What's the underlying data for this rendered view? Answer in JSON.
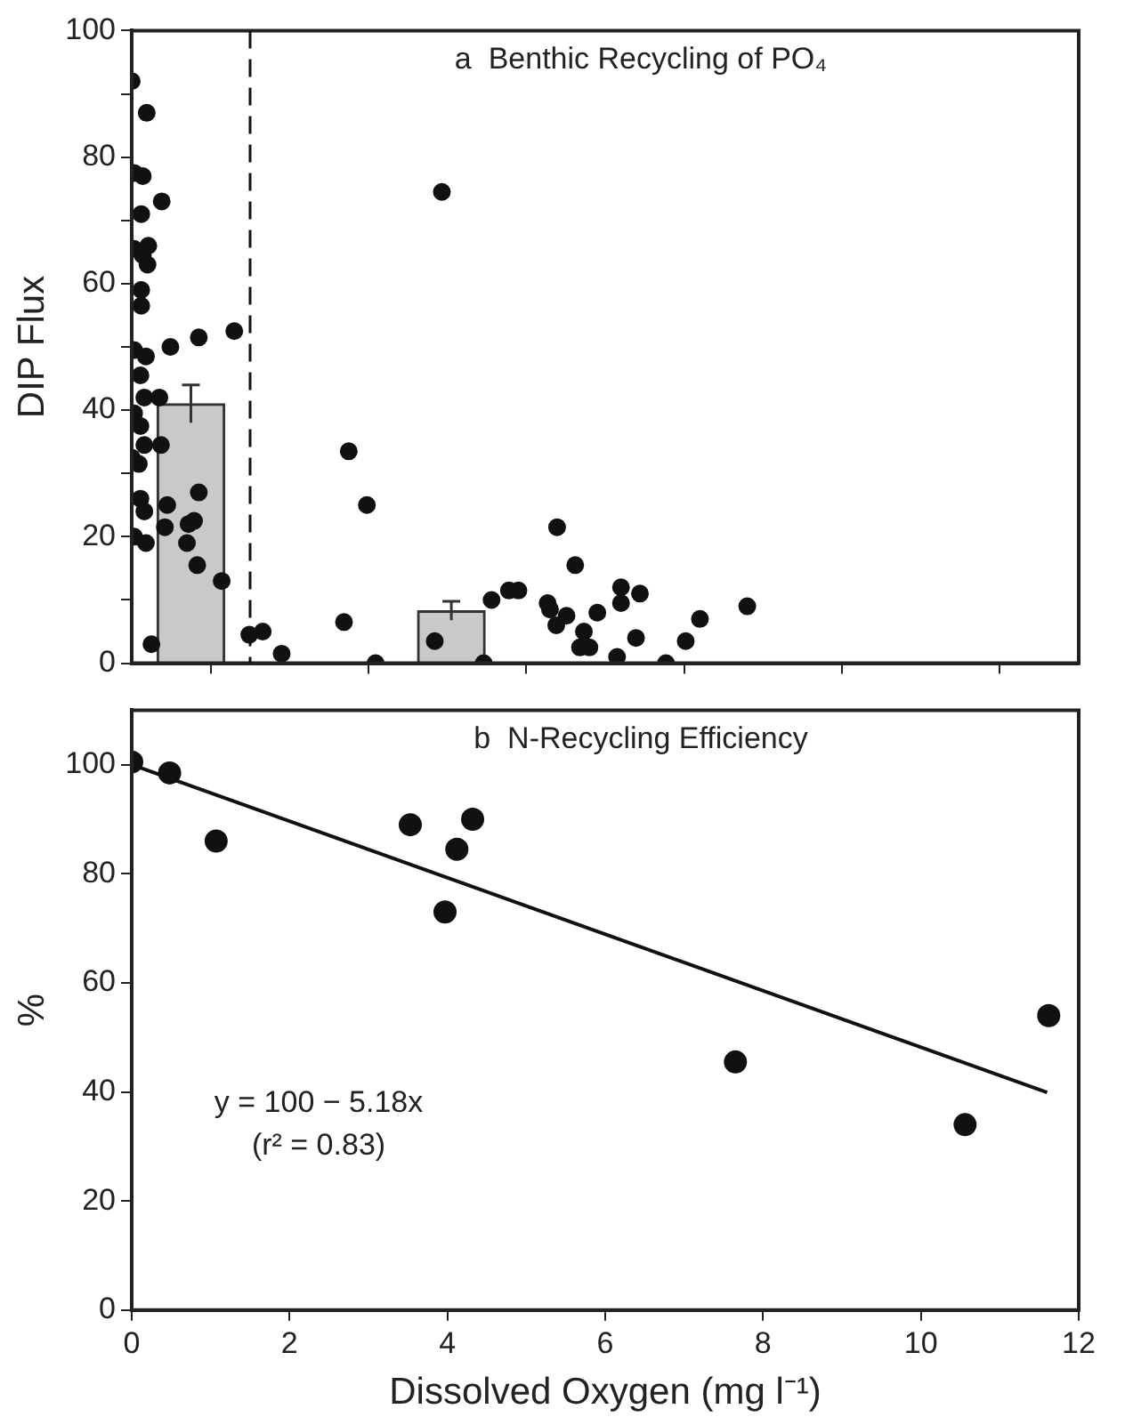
{
  "chart_data": [
    {
      "type": "scatter",
      "title": "a  Benthic Recycling of PO₄",
      "ylabel": "DIP Flux",
      "xlim": [
        0,
        12
      ],
      "xticks": [
        0,
        2,
        4,
        6,
        8,
        10,
        12
      ],
      "ylim": [
        0,
        100
      ],
      "yticks": [
        0,
        {
          "value": 10,
          "label": null
        },
        20,
        {
          "value": 30,
          "label": null
        },
        40,
        {
          "value": 50,
          "label": null
        },
        60,
        {
          "value": 70,
          "label": null
        },
        80,
        {
          "value": 90,
          "label": null
        },
        100
      ],
      "tick_labels": "y",
      "grid": false,
      "legend": false,
      "marker": "circle",
      "ref_lines": [
        {
          "axis": "x",
          "value": 1.5,
          "line_style": "dashed",
          "color": "#111111"
        }
      ],
      "series": [
        {
          "type": "bar",
          "color": "#c8c9cb",
          "x": [
            0.75,
            4.05
          ],
          "values": [
            41,
            8.3
          ],
          "errors": [
            3,
            1.5
          ]
        },
        {
          "type": "scatter",
          "color": "#111111",
          "x": [
            0,
            0.19,
            0.03,
            0.14,
            0.38,
            0.12,
            0.03,
            0.21,
            0.14,
            0.2,
            0.12,
            0.12,
            0.03,
            0.18,
            0.49,
            0.85,
            1.3,
            0.11,
            0.16,
            0.35,
            0.03,
            0.11,
            0.16,
            0.37,
            0,
            0.09,
            0.11,
            0.16,
            0.45,
            0.85,
            0.03,
            0.18,
            0.42,
            0.72,
            0.79,
            0.7,
            0.83,
            1.14,
            0.25,
            1.49,
            1.66,
            1.9,
            2.75,
            2.98,
            2.69,
            3.09,
            3.93,
            3.84,
            4.46,
            4.56,
            4.78,
            4.9,
            5.27,
            5.3,
            5.39,
            5.51,
            5.38,
            5.62,
            5.73,
            5.68,
            5.8,
            5.9,
            6.2,
            6.2,
            6.44,
            6.15,
            6.39,
            6.77,
            7.02,
            7.2,
            7.8
          ],
          "values": [
            92,
            87,
            77.5,
            77,
            73,
            71,
            65.5,
            66,
            64.5,
            63,
            59,
            56.5,
            49.5,
            48.5,
            50,
            51.5,
            52.5,
            45.5,
            42,
            42,
            39.5,
            37.5,
            34.5,
            34.5,
            32.5,
            31.5,
            26,
            24,
            25,
            27,
            20,
            19,
            21.5,
            22,
            22.5,
            19,
            15.5,
            13,
            3,
            4.5,
            5,
            1.5,
            33.5,
            25,
            6.5,
            0,
            74.5,
            3.5,
            0,
            10,
            11.5,
            11.5,
            9.5,
            8.5,
            21.5,
            7.5,
            6,
            15.5,
            5,
            2.5,
            2.5,
            8,
            12,
            9.5,
            11,
            1,
            4,
            0,
            3.5,
            7,
            9
          ]
        }
      ]
    },
    {
      "type": "scatter",
      "xlabel": "Dissolved Oxygen (mg l⁻¹)",
      "ylabel": "%",
      "xlim": [
        0,
        12
      ],
      "xticks": [
        0,
        2,
        4,
        6,
        8,
        10,
        12
      ],
      "ylim": [
        0,
        110
      ],
      "yticks": [
        0,
        20,
        40,
        60,
        80,
        100
      ],
      "grid": false,
      "legend": false,
      "marker": "circle",
      "annotations": [
        "y = 100 − 5.18x",
        "(r² = 0.83)"
      ],
      "title": "b  N-Recycling Efficiency",
      "series": [
        {
          "type": "scatter",
          "color": "#111111",
          "x": [
            0,
            0.48,
            1.07,
            3.53,
            3.97,
            4.12,
            4.32,
            7.65,
            10.56,
            11.62
          ],
          "values": [
            100.5,
            98.5,
            86,
            89,
            73,
            84.5,
            90,
            45.5,
            34,
            54
          ]
        },
        {
          "type": "line",
          "color": "#111111",
          "marker": "none",
          "x": [
            0,
            11.6
          ],
          "values": [
            100,
            39.9
          ]
        }
      ]
    }
  ]
}
